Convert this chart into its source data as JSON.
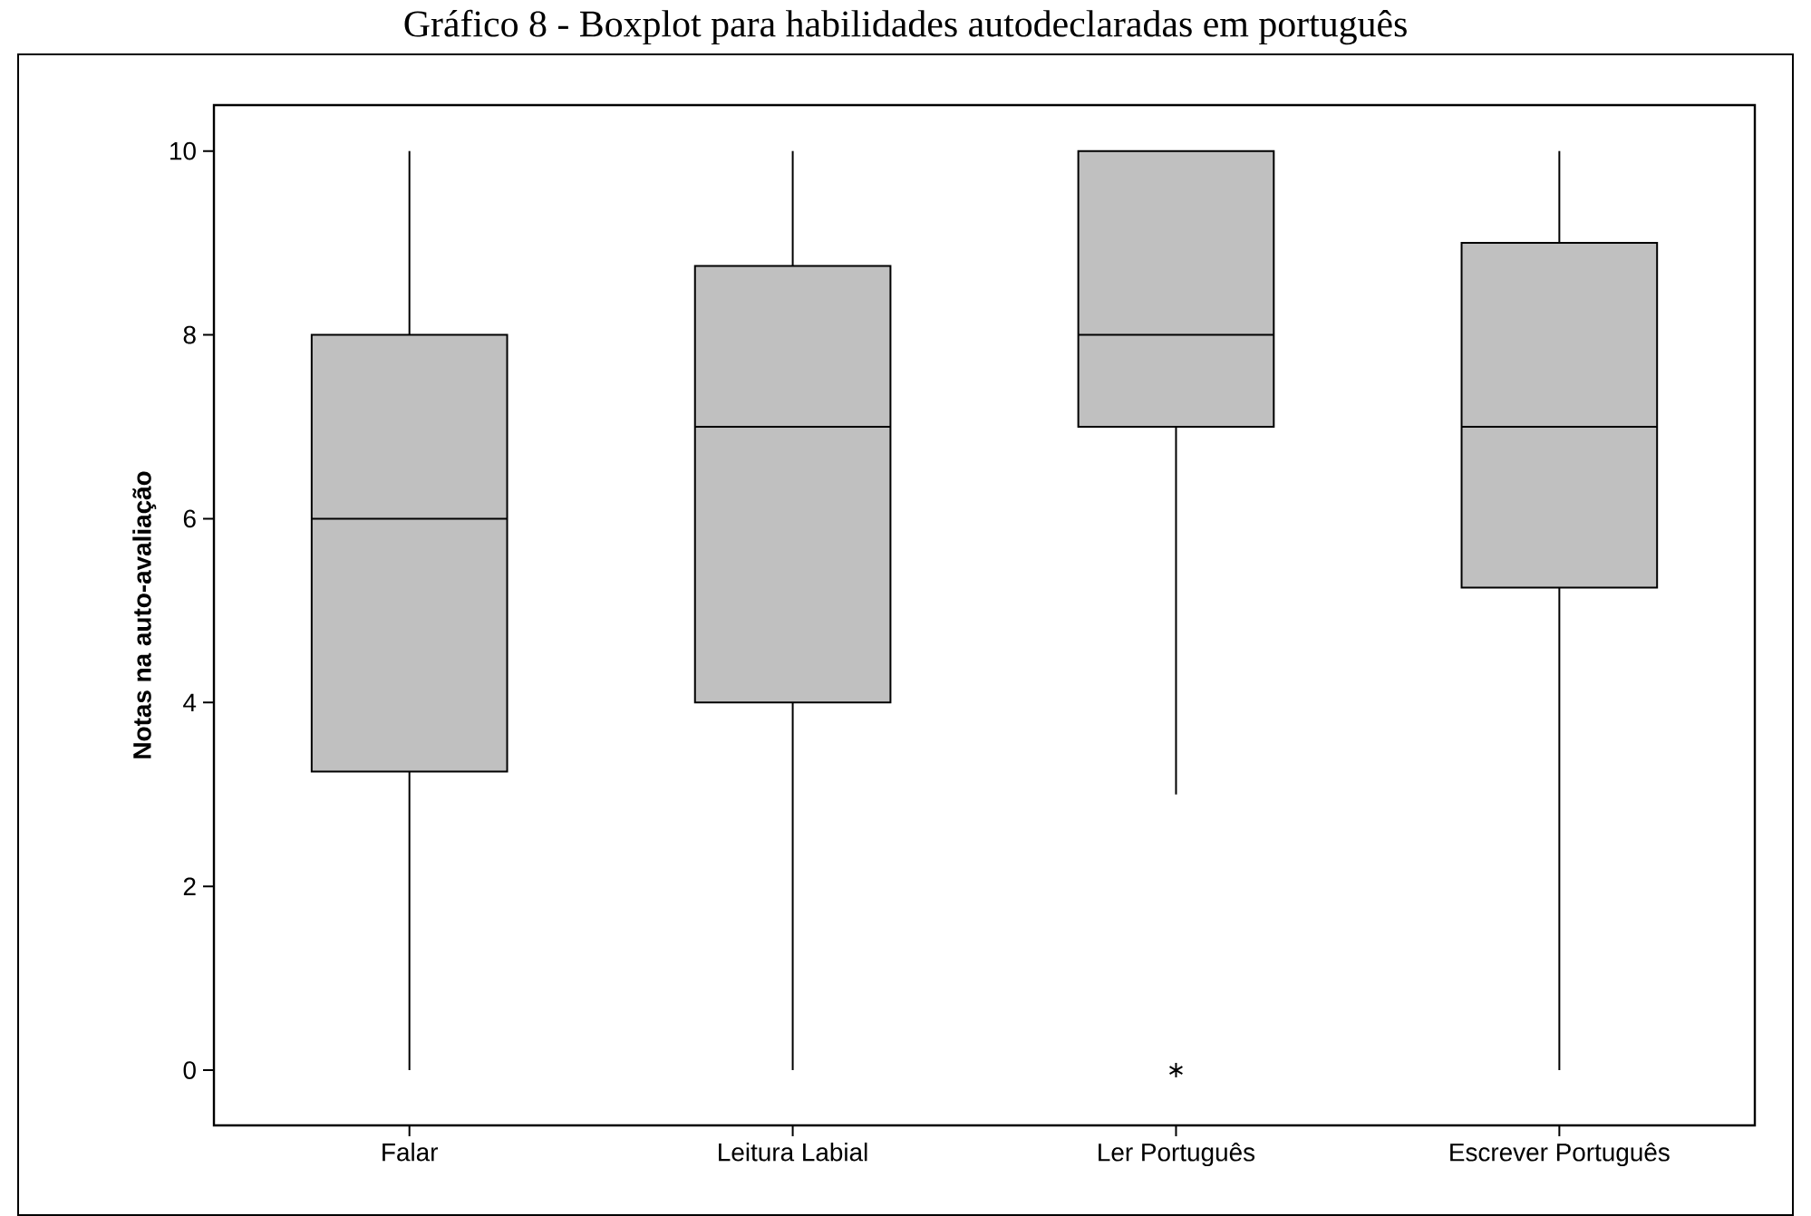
{
  "chart_data": {
    "type": "box",
    "title": "Gráfico 8 - Boxplot para habilidades autodeclaradas em português",
    "ylabel": "Notas na auto-avaliação",
    "categories": [
      "Falar",
      "Leitura Labial",
      "Ler Português",
      "Escrever Português"
    ],
    "color": "#c0c0c0",
    "boxes": [
      {
        "low": 0,
        "q1": 3.25,
        "median": 6,
        "q3": 8,
        "high": 10
      },
      {
        "low": 0,
        "q1": 4,
        "median": 7,
        "q3": 8.75,
        "high": 10
      },
      {
        "low": 3,
        "q1": 7,
        "median": 8,
        "q3": 10,
        "high": 10,
        "outliers": [
          0
        ]
      },
      {
        "low": 0,
        "q1": 5.25,
        "median": 7,
        "q3": 9,
        "high": 10
      }
    ],
    "marker": "star",
    "ylim": [
      -0.6,
      10.5
    ],
    "yticks": [
      0,
      2,
      4,
      6,
      8,
      10
    ],
    "grid": false
  }
}
